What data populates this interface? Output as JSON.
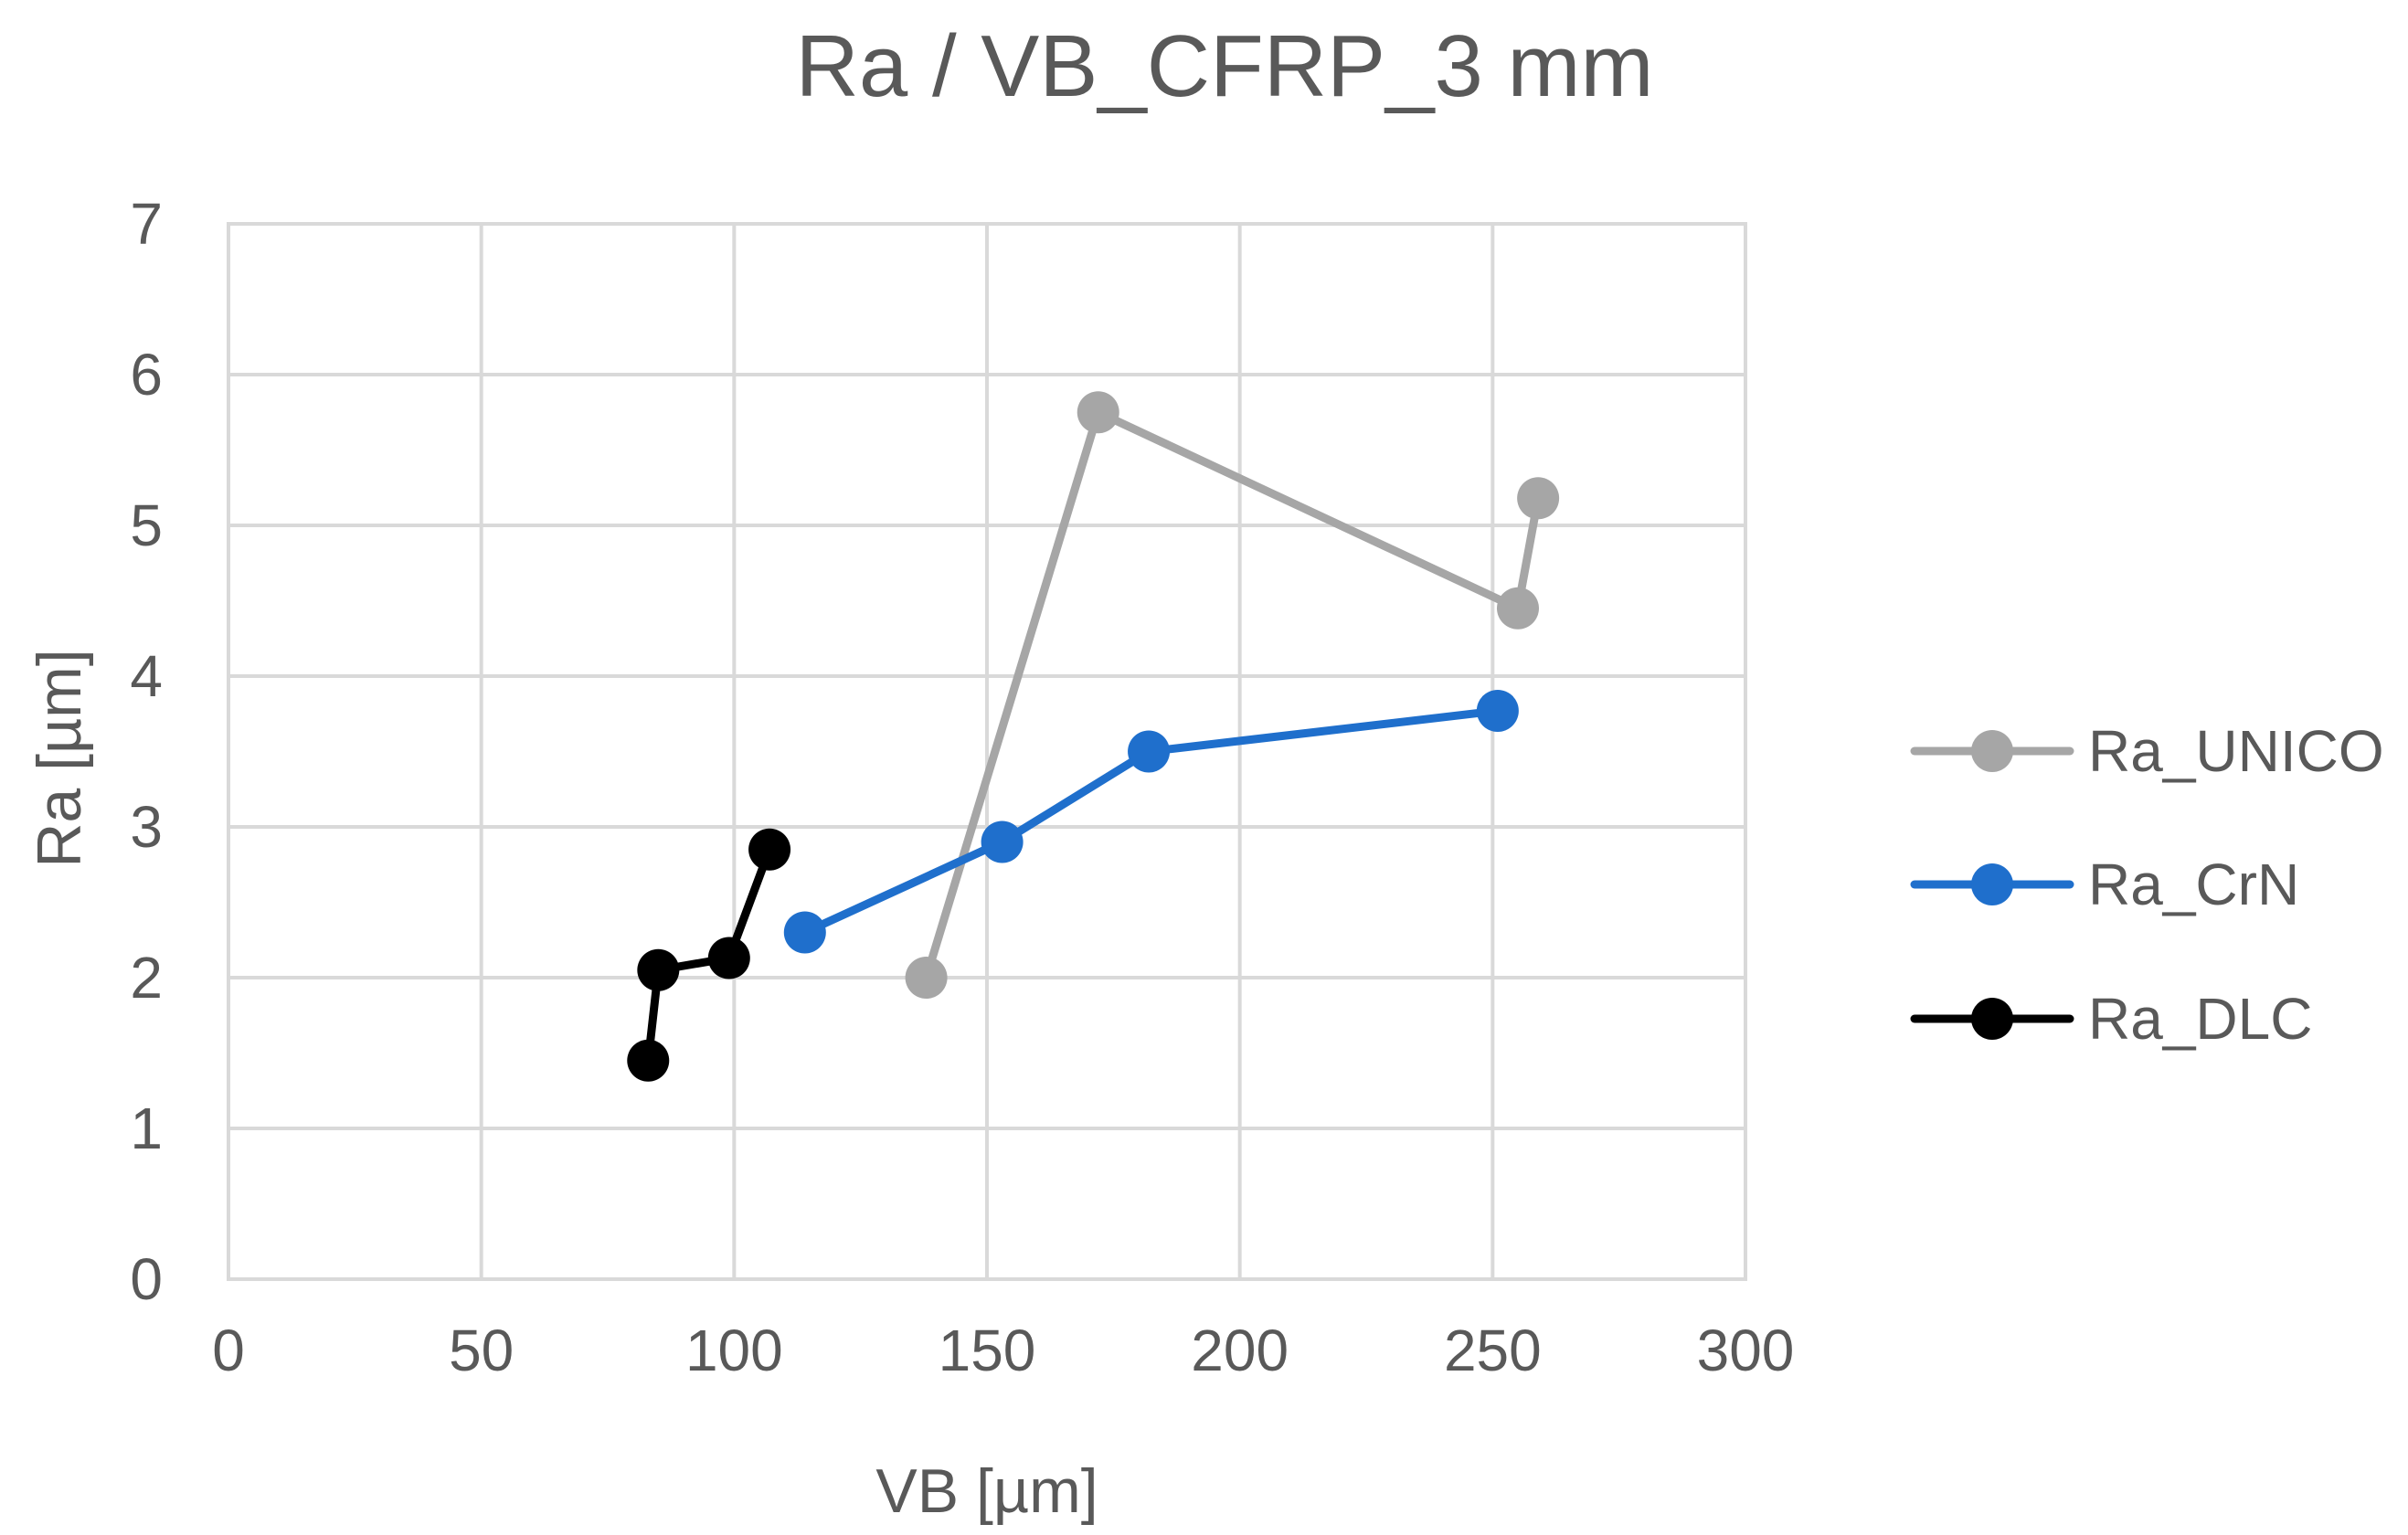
{
  "chart_data": {
    "type": "line",
    "title": "Ra / VB_CFRP_3 mm",
    "xlabel": "VB [µm]",
    "ylabel": "Ra [µm]",
    "xlim": [
      0,
      300
    ],
    "ylim": [
      0,
      7
    ],
    "x_ticks": [
      "0",
      "50",
      "100",
      "150",
      "200",
      "250",
      "300"
    ],
    "y_ticks": [
      "0",
      "1",
      "2",
      "3",
      "4",
      "5",
      "6",
      "7"
    ],
    "grid": true,
    "legend_position": "right",
    "series": [
      {
        "name": "Ra_UNICO",
        "color": "#a6a6a6",
        "x": [
          138,
          172,
          255,
          259
        ],
        "y": [
          2.0,
          5.75,
          4.45,
          5.18
        ]
      },
      {
        "name": "Ra_CrN",
        "color": "#1f6fcc",
        "x": [
          114,
          153,
          182,
          251
        ],
        "y": [
          2.3,
          2.9,
          3.5,
          3.77
        ]
      },
      {
        "name": "Ra_DLC",
        "color": "#000000",
        "x": [
          83,
          85,
          99,
          107
        ],
        "y": [
          1.45,
          2.05,
          2.13,
          2.85
        ]
      }
    ]
  }
}
